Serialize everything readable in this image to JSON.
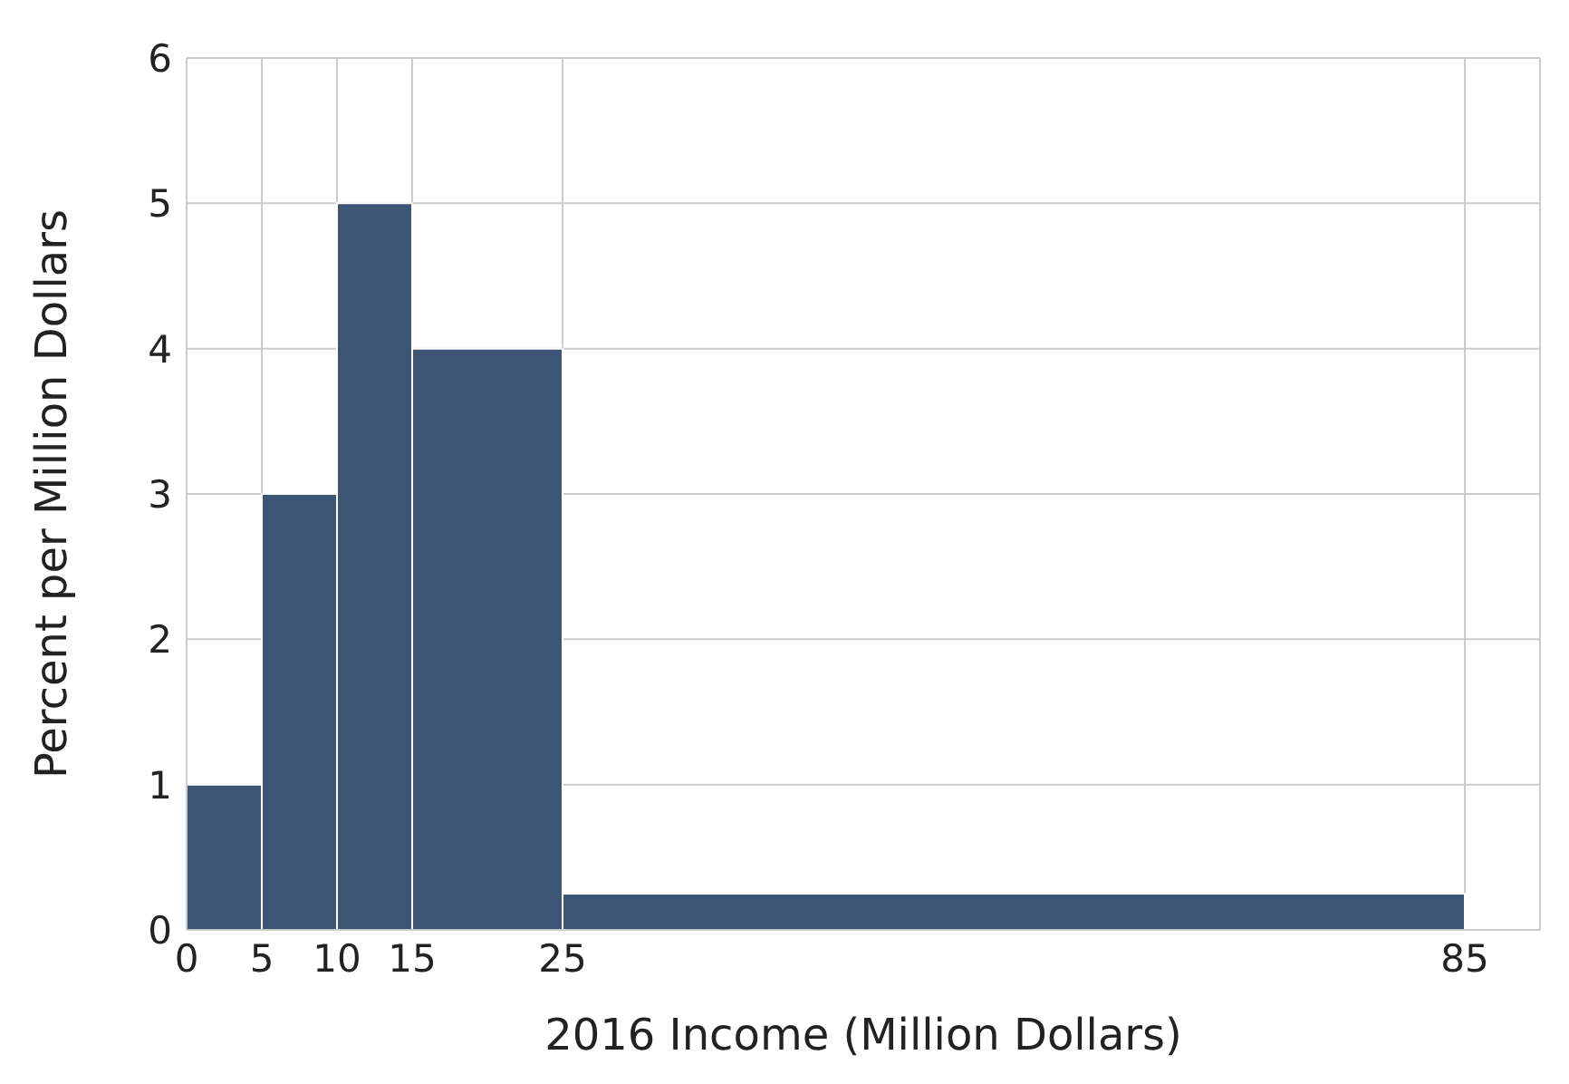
{
  "chart_data": {
    "type": "histogram",
    "xlabel": "2016 Income (Million Dollars)",
    "ylabel": "Percent per Million Dollars",
    "bins": [
      0,
      5,
      10,
      15,
      25,
      85
    ],
    "values": [
      1,
      3,
      5,
      4,
      0.25
    ],
    "color": "#3d5574",
    "xlim": [
      0,
      90
    ],
    "xticks": [
      0,
      5,
      10,
      15,
      25,
      85
    ],
    "ylim": [
      0,
      6
    ],
    "yticks": [
      0,
      1,
      2,
      3,
      4,
      5,
      6
    ],
    "grid": true
  }
}
